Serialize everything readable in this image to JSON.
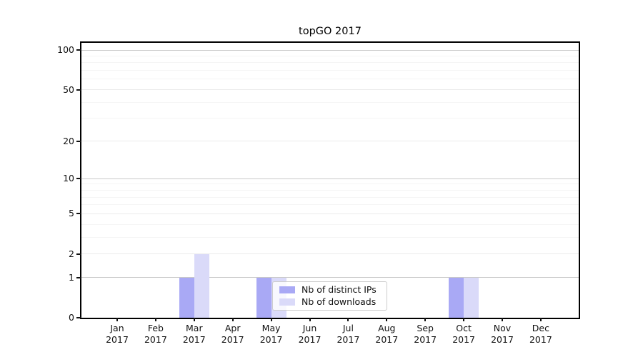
{
  "chart_data": {
    "type": "bar",
    "title": "topGO 2017",
    "categories": [
      "Jan",
      "Feb",
      "Mar",
      "Apr",
      "May",
      "Jun",
      "Jul",
      "Aug",
      "Sep",
      "Oct",
      "Nov",
      "Dec"
    ],
    "category_year": "2017",
    "series": [
      {
        "name": "Nb of distinct IPs",
        "color": "#a9a9f5",
        "values": [
          0,
          0,
          1,
          0,
          1,
          0,
          0,
          0,
          0,
          1,
          0,
          0
        ]
      },
      {
        "name": "Nb of downloads",
        "color": "#dadaf9",
        "values": [
          0,
          0,
          2,
          0,
          1,
          0,
          0,
          0,
          0,
          1,
          0,
          0
        ]
      }
    ],
    "y_ticks": [
      0,
      1,
      2,
      5,
      10,
      20,
      50,
      100
    ],
    "y_minor_gridlines": [
      3,
      4,
      6,
      7,
      8,
      9,
      30,
      40,
      60,
      70,
      80,
      90
    ],
    "y_scale": "log10(1+x)",
    "ylim": [
      0,
      113
    ],
    "grid": "horizontal",
    "legend_position": "inside-bottom-center",
    "colors": {
      "grid_major": "#ebebeb",
      "grid_minor": "#f5f5f5",
      "grid_decade": "#c9c9c9",
      "spine": "#000000",
      "text": "#111111",
      "legend_border": "#cccccc"
    }
  }
}
